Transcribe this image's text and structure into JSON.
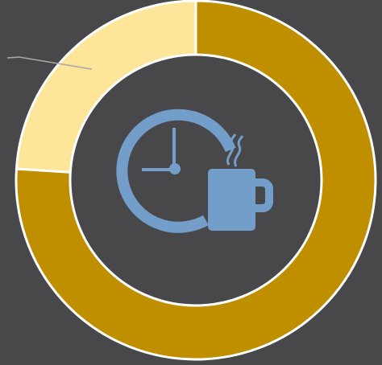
{
  "chart_data": {
    "type": "pie",
    "donut": true,
    "start_angle_deg": 0,
    "direction": "clockwise",
    "slices": [
      {
        "value": 76,
        "color": "#c08f00"
      },
      {
        "value": 24,
        "color": "#fde599"
      }
    ],
    "leader_line": {
      "color": "#a8a8a8"
    }
  },
  "center_icon": {
    "name": "clock-coffee-icon",
    "color": "#739ec9",
    "hole_color": "#48484a"
  },
  "colors": {
    "background": "#48484a",
    "separator": "#ffffff"
  }
}
